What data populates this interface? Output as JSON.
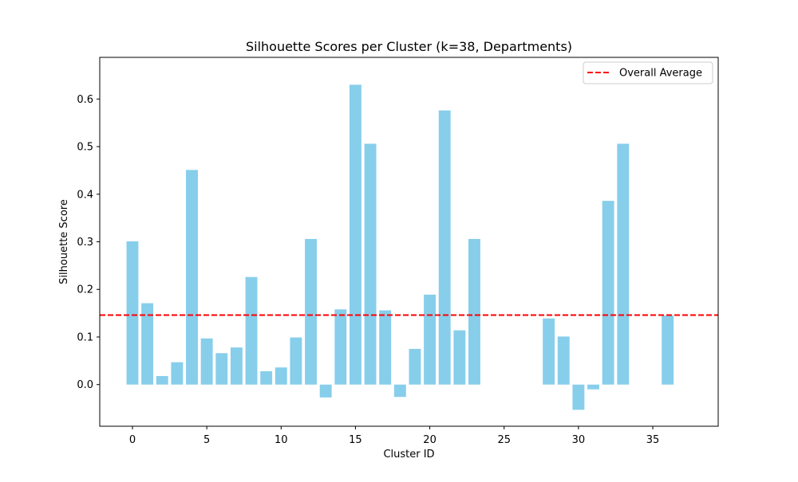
{
  "chart_data": {
    "type": "bar",
    "title": "Silhouette Scores per Cluster (k=38, Departments)",
    "xlabel": "Cluster ID",
    "ylabel": "Silhouette Score",
    "xlim": [
      -2.2,
      39.4
    ],
    "ylim": [
      -0.0875,
      0.6875
    ],
    "xticks": [
      0,
      5,
      10,
      15,
      20,
      25,
      30,
      35
    ],
    "xtick_labels": [
      "0",
      "5",
      "10",
      "15",
      "20",
      "25",
      "30",
      "35"
    ],
    "yticks": [
      0.0,
      0.1,
      0.2,
      0.3,
      0.4,
      0.5,
      0.6
    ],
    "ytick_labels": [
      "0.0",
      "0.1",
      "0.2",
      "0.3",
      "0.4",
      "0.5",
      "0.6"
    ],
    "bar_color": "#87ceeb",
    "bar_width": 0.8,
    "x": [
      0,
      1,
      2,
      3,
      4,
      5,
      6,
      7,
      8,
      9,
      10,
      11,
      12,
      13,
      14,
      15,
      16,
      17,
      18,
      19,
      20,
      21,
      22,
      23,
      28,
      29,
      30,
      31,
      32,
      33,
      36
    ],
    "values": [
      0.301,
      0.171,
      0.018,
      0.047,
      0.451,
      0.097,
      0.066,
      0.078,
      0.226,
      0.028,
      0.036,
      0.099,
      0.306,
      -0.027,
      0.158,
      0.63,
      0.506,
      0.156,
      -0.026,
      0.075,
      0.189,
      0.576,
      0.114,
      0.306,
      0.139,
      0.101,
      -0.053,
      -0.01,
      0.386,
      0.506,
      0.145
    ],
    "reference_line": {
      "value": 0.146,
      "label": "Overall Average",
      "color": "#ff0000",
      "style": "dashed"
    },
    "legend": {
      "location": "upper right",
      "entries": [
        "Overall Average"
      ]
    },
    "grid": false
  }
}
